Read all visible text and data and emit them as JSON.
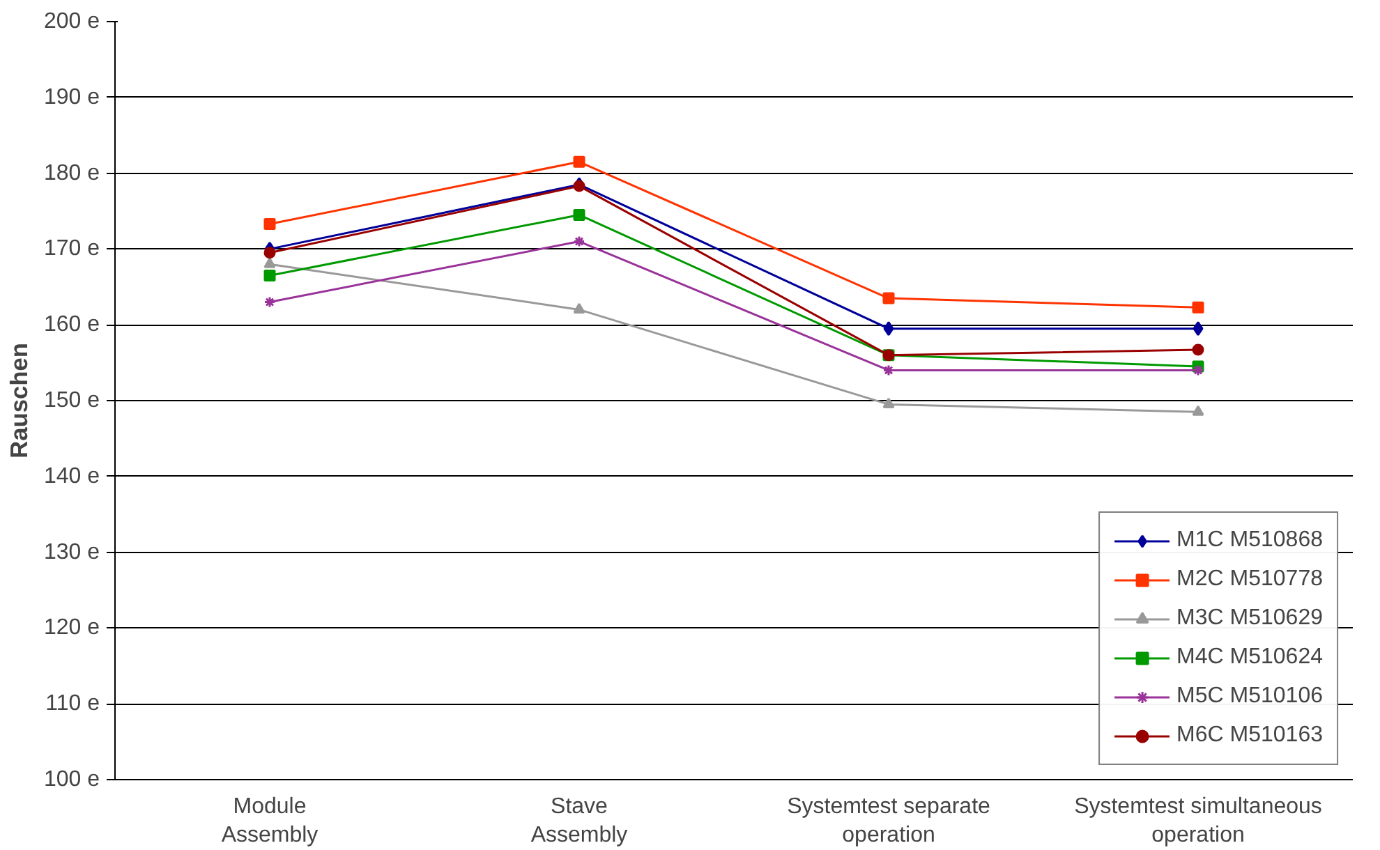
{
  "chart_data": {
    "type": "line",
    "ylabel": "Rauschen",
    "categories": [
      "Module\nAssembly",
      "Stave\nAssembly",
      "Systemtest separate\noperation",
      "Systemtest simultaneous\noperation"
    ],
    "ylim": [
      100,
      200
    ],
    "yticks": [
      {
        "value": 100,
        "label": "100 e"
      },
      {
        "value": 110,
        "label": "110 e"
      },
      {
        "value": 120,
        "label": "120 e"
      },
      {
        "value": 130,
        "label": "130 e"
      },
      {
        "value": 140,
        "label": "140 e"
      },
      {
        "value": 150,
        "label": "150 e"
      },
      {
        "value": 160,
        "label": "160 e"
      },
      {
        "value": 170,
        "label": "170 e"
      },
      {
        "value": 180,
        "label": "180 e"
      },
      {
        "value": 190,
        "label": "190 e"
      },
      {
        "value": 200,
        "label": "200 e"
      }
    ],
    "grid": "y",
    "legend": "bottom right",
    "line_style": "solid",
    "series": [
      {
        "name": "M1C M510868",
        "color": "#000099",
        "marker": "diamond",
        "values": [
          170,
          178.5,
          159.5,
          159.5
        ]
      },
      {
        "name": "M2C M510778",
        "color": "#ff3300",
        "marker": "square",
        "values": [
          173.3,
          181.5,
          163.5,
          162.3
        ]
      },
      {
        "name": "M3C M510629",
        "color": "#999999",
        "marker": "triangle",
        "values": [
          168,
          162,
          149.5,
          148.5
        ]
      },
      {
        "name": "M4C M510624",
        "color": "#009900",
        "marker": "square",
        "values": [
          166.5,
          174.5,
          156,
          154.5
        ]
      },
      {
        "name": "M5C M510106",
        "color": "#993399",
        "marker": "cross",
        "values": [
          163,
          171,
          154,
          154
        ]
      },
      {
        "name": "M6C M510163",
        "color": "#990000",
        "marker": "circle",
        "values": [
          169.5,
          178.3,
          156,
          156.7
        ]
      }
    ]
  }
}
